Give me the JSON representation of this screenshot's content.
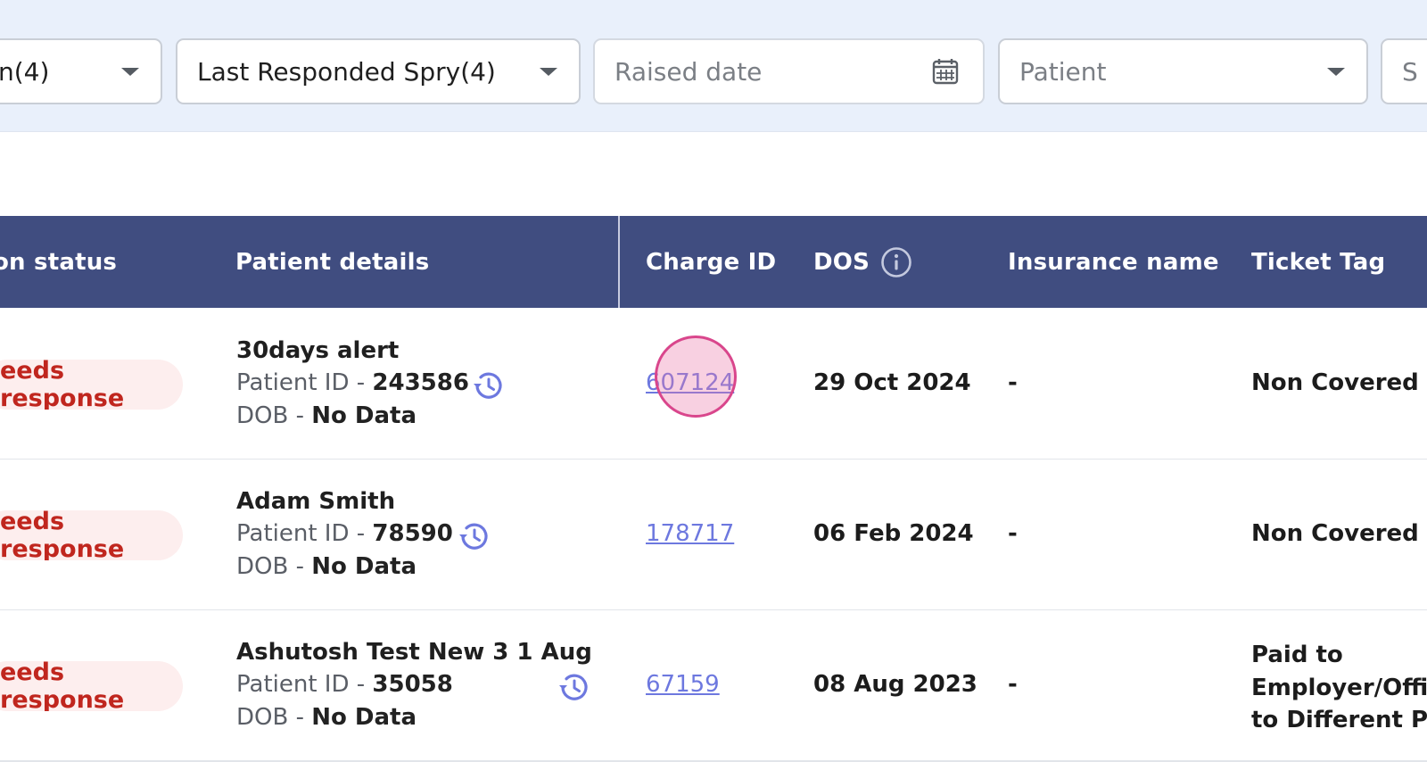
{
  "filters": {
    "status": {
      "value": "n(4)"
    },
    "last_responded": {
      "value": "Last Responded Spry(4)"
    },
    "raised_date": {
      "placeholder": "Raised date",
      "icon": "calendar-icon"
    },
    "patient": {
      "placeholder": "Patient"
    },
    "next": {
      "placeholder": "S"
    }
  },
  "table": {
    "headers": {
      "status": "on status",
      "patient_details": "Patient details",
      "charge_id": "Charge ID",
      "dos": "DOS",
      "insurance_name": "Insurance name",
      "ticket_tag": "Ticket Tag"
    },
    "labels": {
      "patient_id": "Patient ID - ",
      "dob": "DOB - "
    },
    "rows": [
      {
        "status": "eeds response",
        "patient_name": "30days alert",
        "patient_id": "243586",
        "dob": "No Data",
        "charge_id": "607124",
        "dos": "29 Oct 2024",
        "insurance": "-",
        "ticket_tag": "Non Covered"
      },
      {
        "status": "eeds response",
        "patient_name": "Adam Smith",
        "patient_id": "78590",
        "dob": "No Data",
        "charge_id": "178717",
        "dos": "06 Feb 2024",
        "insurance": "-",
        "ticket_tag": "Non Covered"
      },
      {
        "status": "eeds response",
        "patient_name": "Ashutosh Test New 3 1 Aug",
        "patient_id": "35058",
        "dob": "No Data",
        "charge_id": "67159",
        "dos": "08 Aug 2023",
        "insurance": "-",
        "ticket_tag": "Paid to Employer/Office to Different P"
      }
    ]
  },
  "colors": {
    "header_bg": "#404d80",
    "filter_bg": "#e9f0fb",
    "badge_bg": "#fdeeee",
    "badge_text": "#c0261e",
    "link": "#6d78df",
    "click_marker": "#d9468c"
  }
}
